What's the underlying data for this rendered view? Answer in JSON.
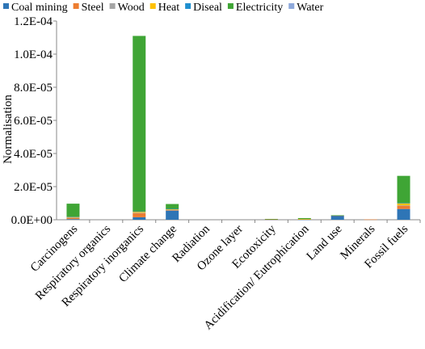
{
  "chart_data": {
    "type": "bar",
    "stacked": true,
    "title": "",
    "xlabel": "",
    "ylabel": "Normalisation",
    "ylim": [
      0,
      0.00012
    ],
    "yticks": [
      "0.0E+00",
      "2.0E-05",
      "4.0E-05",
      "6.0E-05",
      "8.0E-05",
      "1.0E-04",
      "1.2E-04"
    ],
    "ytick_values": [
      0,
      2e-05,
      4e-05,
      6e-05,
      8e-05,
      0.0001,
      0.00012
    ],
    "grid": false,
    "legend_position": "top",
    "categories": [
      "Carcinogens",
      "Respiratory organics",
      "Respiratory inorganics",
      "Climate change",
      "Radiation",
      "Ozone layer",
      "Ecotoxicity",
      "Acidification/ Eutrophication",
      "Land use",
      "Minerals",
      "Fossil fuels"
    ],
    "series": [
      {
        "name": "Coal mining",
        "color": "#2E75B6",
        "values": [
          4e-07,
          0,
          1.5e-06,
          5.5e-06,
          0,
          0,
          1e-07,
          2e-07,
          2.5e-06,
          0,
          6.5e-06
        ]
      },
      {
        "name": "Steel",
        "color": "#ED7D31",
        "values": [
          8e-07,
          0,
          2.5e-06,
          4e-07,
          0,
          0,
          1e-07,
          1e-07,
          1e-07,
          2e-07,
          2e-06
        ]
      },
      {
        "name": "Wood",
        "color": "#A5A5A5",
        "values": [
          1e-07,
          0,
          3e-07,
          1e-07,
          0,
          0,
          0,
          0,
          0,
          0,
          2e-07
        ]
      },
      {
        "name": "Heat",
        "color": "#FFC000",
        "values": [
          5e-07,
          0,
          7e-07,
          5e-07,
          0,
          0,
          0,
          1e-07,
          0,
          0,
          1.3e-06
        ]
      },
      {
        "name": "Diseal",
        "color": "#1F8FCF",
        "values": [
          1e-07,
          0,
          1e-07,
          1e-07,
          0,
          0,
          0,
          0,
          0,
          0,
          1e-07
        ]
      },
      {
        "name": "Electricity",
        "color": "#3FA535",
        "values": [
          7.8e-06,
          0,
          0.0001059,
          2.9e-06,
          0,
          0,
          3e-07,
          6e-07,
          1e-07,
          0,
          1.64e-05
        ]
      },
      {
        "name": "Water",
        "color": "#8EA9DB",
        "values": [
          0,
          0,
          0,
          0,
          0,
          0,
          0,
          0,
          0,
          0,
          0
        ]
      }
    ]
  }
}
